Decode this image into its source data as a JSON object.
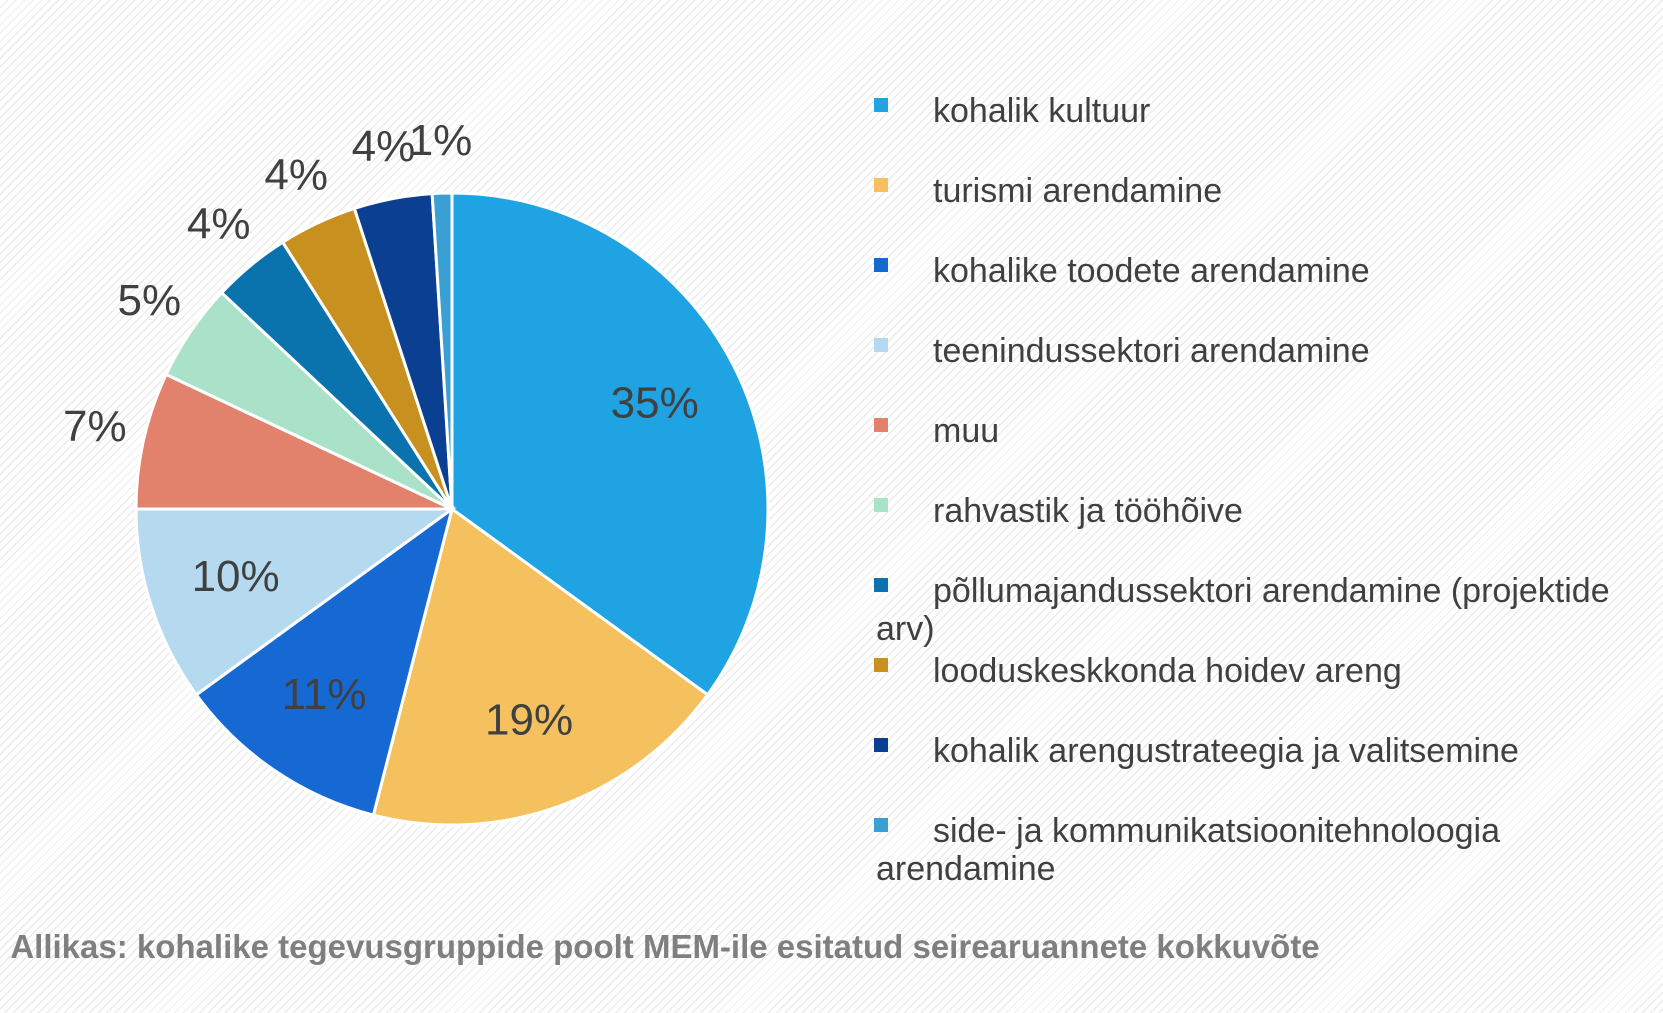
{
  "chart_data": {
    "type": "pie",
    "categories": [
      "kohalik kultuur",
      "turismi arendamine",
      "kohalike toodete arendamine",
      "teenindussektori arendamine",
      "muu",
      "rahvastik ja tööhõive",
      "põllumajandussektori arendamine (projektide arv)",
      "looduskeskkonda hoidev areng",
      "kohalik arengustrateegia ja valitsemine",
      "side- ja kommunikatsioonitehnoloogia arendamine"
    ],
    "values": [
      35,
      19,
      11,
      10,
      7,
      5,
      4,
      4,
      4,
      1
    ],
    "value_labels": [
      "35%",
      "19%",
      "11%",
      "10%",
      "7%",
      "5%",
      "4%",
      "4%",
      "4%",
      "1%"
    ],
    "colors": [
      "#1fa3e3",
      "#f5c15f",
      "#1668d2",
      "#b5daf0",
      "#e2826c",
      "#a9e1c9",
      "#0a73ad",
      "#c8901f",
      "#0b3f92",
      "#3aa0d4"
    ],
    "caption": "Allikas: kohalike tegevusgruppide poolt MEM-ile esitatud seirearuannete kokkuvõte"
  }
}
